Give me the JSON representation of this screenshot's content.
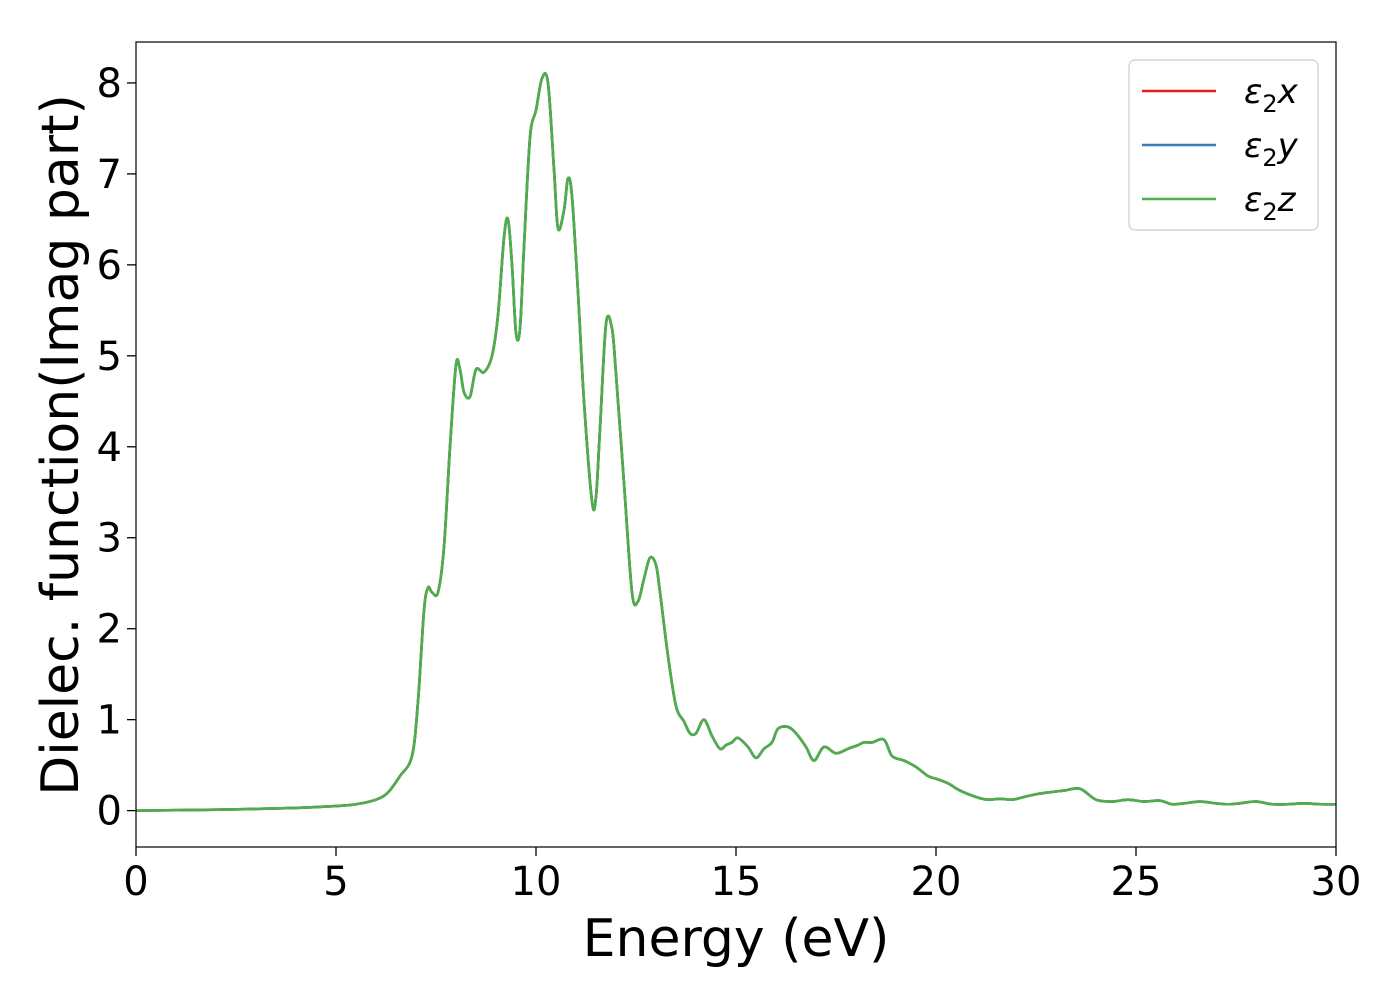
{
  "chart_data": {
    "type": "line",
    "title": "",
    "xlabel": "Energy (eV)",
    "ylabel": "Dielec. function(Imag part)",
    "xlim": [
      0,
      30
    ],
    "ylim": [
      -0.4,
      8.45
    ],
    "xticks": [
      0,
      5,
      10,
      15,
      20,
      25,
      30
    ],
    "yticks": [
      0,
      1,
      2,
      3,
      4,
      5,
      6,
      7,
      8
    ],
    "grid": false,
    "legend_position": "top-right",
    "series": [
      {
        "name": "ε2x",
        "legend_base": "ε",
        "legend_sub": "2",
        "legend_suffix": "x",
        "color": "#e41a1c",
        "x": [
          0,
          2,
          4,
          5,
          5.5,
          6,
          6.3,
          6.6,
          6.9,
          7.05,
          7.2,
          7.3,
          7.4,
          7.55,
          7.7,
          7.85,
          8.0,
          8.1,
          8.2,
          8.35,
          8.5,
          8.7,
          8.9,
          9.05,
          9.2,
          9.3,
          9.4,
          9.5,
          9.6,
          9.7,
          9.85,
          10.0,
          10.15,
          10.3,
          10.45,
          10.55,
          10.7,
          10.8,
          10.9,
          11.05,
          11.2,
          11.4,
          11.5,
          11.6,
          11.75,
          11.9,
          12.0,
          12.2,
          12.4,
          12.55,
          12.7,
          12.85,
          13.0,
          13.1,
          13.3,
          13.5,
          13.7,
          13.85,
          14.0,
          14.2,
          14.4,
          14.6,
          14.75,
          14.9,
          15.05,
          15.3,
          15.5,
          15.7,
          15.9,
          16.05,
          16.3,
          16.5,
          16.75,
          16.95,
          17.2,
          17.5,
          17.8,
          18.05,
          18.2,
          18.4,
          18.7,
          18.9,
          19.2,
          19.5,
          19.8,
          20.0,
          20.3,
          20.6,
          21.0,
          21.3,
          21.6,
          21.9,
          22.2,
          22.5,
          22.8,
          23.2,
          23.6,
          24.0,
          24.4,
          24.8,
          25.2,
          25.6,
          25.9,
          26.2,
          26.6,
          27.0,
          27.3,
          27.6,
          28.0,
          28.4,
          28.8,
          29.2,
          29.6,
          30.0
        ],
        "values": [
          0.0,
          0.01,
          0.03,
          0.05,
          0.07,
          0.12,
          0.2,
          0.38,
          0.6,
          1.2,
          2.2,
          2.45,
          2.4,
          2.4,
          2.9,
          4.0,
          4.9,
          4.85,
          4.6,
          4.55,
          4.85,
          4.82,
          5.0,
          5.45,
          6.3,
          6.5,
          6.0,
          5.25,
          5.3,
          6.2,
          7.4,
          7.7,
          8.05,
          8.0,
          7.05,
          6.4,
          6.6,
          6.95,
          6.75,
          5.7,
          4.5,
          3.4,
          3.45,
          4.2,
          5.35,
          5.3,
          4.8,
          3.6,
          2.4,
          2.3,
          2.55,
          2.78,
          2.7,
          2.4,
          1.7,
          1.15,
          0.98,
          0.85,
          0.85,
          1.0,
          0.82,
          0.68,
          0.72,
          0.75,
          0.8,
          0.7,
          0.58,
          0.68,
          0.75,
          0.9,
          0.92,
          0.85,
          0.7,
          0.55,
          0.7,
          0.63,
          0.68,
          0.72,
          0.75,
          0.75,
          0.78,
          0.6,
          0.55,
          0.48,
          0.38,
          0.35,
          0.3,
          0.22,
          0.15,
          0.12,
          0.13,
          0.12,
          0.15,
          0.18,
          0.2,
          0.22,
          0.24,
          0.12,
          0.1,
          0.12,
          0.1,
          0.11,
          0.07,
          0.08,
          0.1,
          0.08,
          0.07,
          0.08,
          0.1,
          0.07,
          0.07,
          0.08,
          0.07,
          0.07
        ]
      },
      {
        "name": "ε2y",
        "legend_base": "ε",
        "legend_sub": "2",
        "legend_suffix": "y",
        "color": "#377eb8",
        "x": [
          0,
          2,
          4,
          5,
          5.5,
          6,
          6.3,
          6.6,
          6.9,
          7.05,
          7.2,
          7.3,
          7.4,
          7.55,
          7.7,
          7.85,
          8.0,
          8.1,
          8.2,
          8.35,
          8.5,
          8.7,
          8.9,
          9.05,
          9.2,
          9.3,
          9.4,
          9.5,
          9.6,
          9.7,
          9.85,
          10.0,
          10.15,
          10.3,
          10.45,
          10.55,
          10.7,
          10.8,
          10.9,
          11.05,
          11.2,
          11.4,
          11.5,
          11.6,
          11.75,
          11.9,
          12.0,
          12.2,
          12.4,
          12.55,
          12.7,
          12.85,
          13.0,
          13.1,
          13.3,
          13.5,
          13.7,
          13.85,
          14.0,
          14.2,
          14.4,
          14.6,
          14.75,
          14.9,
          15.05,
          15.3,
          15.5,
          15.7,
          15.9,
          16.05,
          16.3,
          16.5,
          16.75,
          16.95,
          17.2,
          17.5,
          17.8,
          18.05,
          18.2,
          18.4,
          18.7,
          18.9,
          19.2,
          19.5,
          19.8,
          20.0,
          20.3,
          20.6,
          21.0,
          21.3,
          21.6,
          21.9,
          22.2,
          22.5,
          22.8,
          23.2,
          23.6,
          24.0,
          24.4,
          24.8,
          25.2,
          25.6,
          25.9,
          26.2,
          26.6,
          27.0,
          27.3,
          27.6,
          28.0,
          28.4,
          28.8,
          29.2,
          29.6,
          30.0
        ],
        "values": [
          0.0,
          0.01,
          0.03,
          0.05,
          0.07,
          0.12,
          0.2,
          0.38,
          0.6,
          1.2,
          2.2,
          2.45,
          2.4,
          2.4,
          2.9,
          4.0,
          4.9,
          4.85,
          4.6,
          4.55,
          4.85,
          4.82,
          5.0,
          5.45,
          6.3,
          6.5,
          6.0,
          5.25,
          5.3,
          6.2,
          7.4,
          7.7,
          8.05,
          8.0,
          7.05,
          6.4,
          6.6,
          6.95,
          6.75,
          5.7,
          4.5,
          3.4,
          3.45,
          4.2,
          5.35,
          5.3,
          4.8,
          3.6,
          2.4,
          2.3,
          2.55,
          2.78,
          2.7,
          2.4,
          1.7,
          1.15,
          0.98,
          0.85,
          0.85,
          1.0,
          0.82,
          0.68,
          0.72,
          0.75,
          0.8,
          0.7,
          0.58,
          0.68,
          0.75,
          0.9,
          0.92,
          0.85,
          0.7,
          0.55,
          0.7,
          0.63,
          0.68,
          0.72,
          0.75,
          0.75,
          0.78,
          0.6,
          0.55,
          0.48,
          0.38,
          0.35,
          0.3,
          0.22,
          0.15,
          0.12,
          0.13,
          0.12,
          0.15,
          0.18,
          0.2,
          0.22,
          0.24,
          0.12,
          0.1,
          0.12,
          0.1,
          0.11,
          0.07,
          0.08,
          0.1,
          0.08,
          0.07,
          0.08,
          0.1,
          0.07,
          0.07,
          0.08,
          0.07,
          0.07
        ]
      },
      {
        "name": "ε2z",
        "legend_base": "ε",
        "legend_sub": "2",
        "legend_suffix": "z",
        "color": "#4daf4a",
        "x": [
          0,
          2,
          4,
          5,
          5.5,
          6,
          6.3,
          6.6,
          6.9,
          7.05,
          7.2,
          7.3,
          7.4,
          7.55,
          7.7,
          7.85,
          8.0,
          8.1,
          8.2,
          8.35,
          8.5,
          8.7,
          8.9,
          9.05,
          9.2,
          9.3,
          9.4,
          9.5,
          9.6,
          9.7,
          9.85,
          10.0,
          10.15,
          10.3,
          10.45,
          10.55,
          10.7,
          10.8,
          10.9,
          11.05,
          11.2,
          11.4,
          11.5,
          11.6,
          11.75,
          11.9,
          12.0,
          12.2,
          12.4,
          12.55,
          12.7,
          12.85,
          13.0,
          13.1,
          13.3,
          13.5,
          13.7,
          13.85,
          14.0,
          14.2,
          14.4,
          14.6,
          14.75,
          14.9,
          15.05,
          15.3,
          15.5,
          15.7,
          15.9,
          16.05,
          16.3,
          16.5,
          16.75,
          16.95,
          17.2,
          17.5,
          17.8,
          18.05,
          18.2,
          18.4,
          18.7,
          18.9,
          19.2,
          19.5,
          19.8,
          20.0,
          20.3,
          20.6,
          21.0,
          21.3,
          21.6,
          21.9,
          22.2,
          22.5,
          22.8,
          23.2,
          23.6,
          24.0,
          24.4,
          24.8,
          25.2,
          25.6,
          25.9,
          26.2,
          26.6,
          27.0,
          27.3,
          27.6,
          28.0,
          28.4,
          28.8,
          29.2,
          29.6,
          30.0
        ],
        "values": [
          0.0,
          0.01,
          0.03,
          0.05,
          0.07,
          0.12,
          0.2,
          0.38,
          0.6,
          1.2,
          2.2,
          2.45,
          2.4,
          2.4,
          2.9,
          4.0,
          4.9,
          4.85,
          4.6,
          4.55,
          4.85,
          4.82,
          5.0,
          5.45,
          6.3,
          6.5,
          6.0,
          5.25,
          5.3,
          6.2,
          7.4,
          7.7,
          8.05,
          8.0,
          7.05,
          6.4,
          6.6,
          6.95,
          6.75,
          5.7,
          4.5,
          3.4,
          3.45,
          4.2,
          5.35,
          5.3,
          4.8,
          3.6,
          2.4,
          2.3,
          2.55,
          2.78,
          2.7,
          2.4,
          1.7,
          1.15,
          0.98,
          0.85,
          0.85,
          1.0,
          0.82,
          0.68,
          0.72,
          0.75,
          0.8,
          0.7,
          0.58,
          0.68,
          0.75,
          0.9,
          0.92,
          0.85,
          0.7,
          0.55,
          0.7,
          0.63,
          0.68,
          0.72,
          0.75,
          0.75,
          0.78,
          0.6,
          0.55,
          0.48,
          0.38,
          0.35,
          0.3,
          0.22,
          0.15,
          0.12,
          0.13,
          0.12,
          0.15,
          0.18,
          0.2,
          0.22,
          0.24,
          0.12,
          0.1,
          0.12,
          0.1,
          0.11,
          0.07,
          0.08,
          0.1,
          0.08,
          0.07,
          0.08,
          0.1,
          0.07,
          0.07,
          0.08,
          0.07,
          0.07
        ]
      }
    ]
  }
}
